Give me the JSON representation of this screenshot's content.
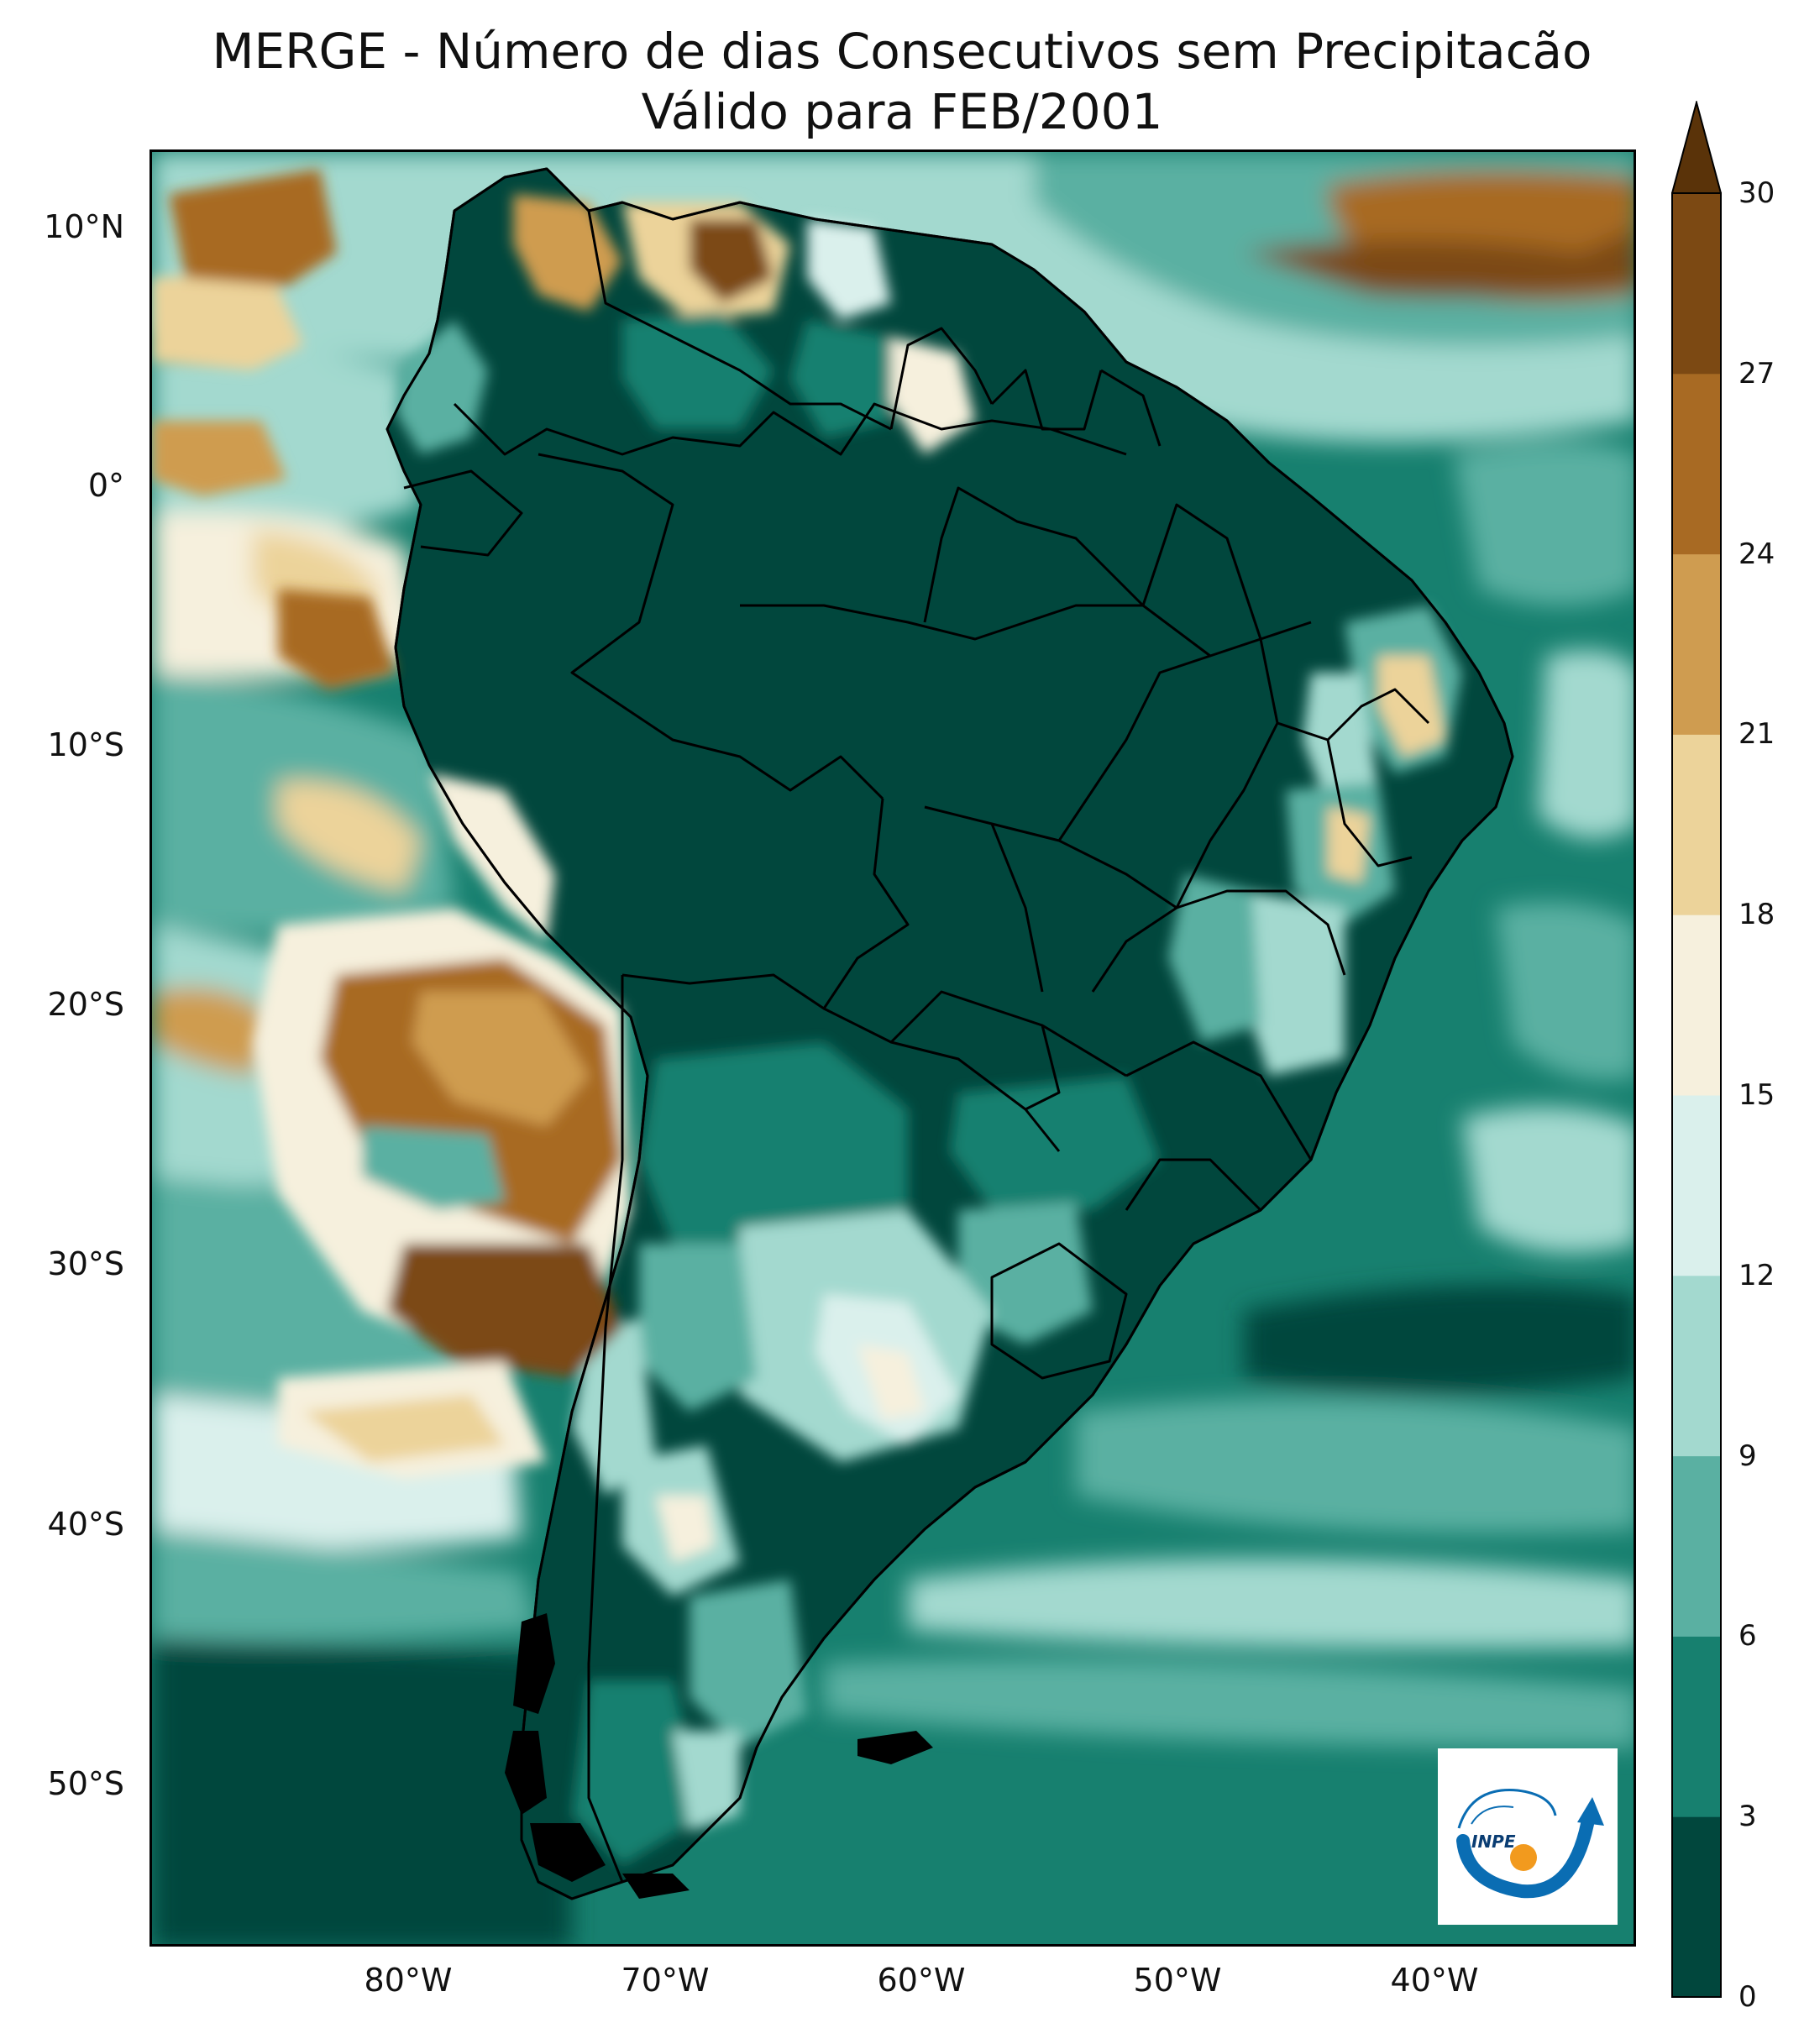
{
  "title": {
    "line1": "MERGE - Número de dias Consecutivos sem Precipitacão",
    "line2": "Válido para FEB/2001"
  },
  "axes": {
    "lat_labels": [
      {
        "text": "10°N",
        "value": 10
      },
      {
        "text": "0°",
        "value": 0
      },
      {
        "text": "10°S",
        "value": -10
      },
      {
        "text": "20°S",
        "value": -20
      },
      {
        "text": "30°S",
        "value": -30
      },
      {
        "text": "40°S",
        "value": -40
      },
      {
        "text": "50°S",
        "value": -50
      }
    ],
    "lon_labels": [
      {
        "text": "80°W",
        "value": -80
      },
      {
        "text": "70°W",
        "value": -70
      },
      {
        "text": "60°W",
        "value": -60
      },
      {
        "text": "50°W",
        "value": -50
      },
      {
        "text": "40°W",
        "value": -40
      }
    ],
    "lat_range": [
      -57,
      13
    ],
    "lon_range": [
      -90,
      -32
    ]
  },
  "colorbar": {
    "ticks": [
      "0",
      "3",
      "6",
      "9",
      "12",
      "15",
      "18",
      "21",
      "24",
      "27",
      "30"
    ],
    "colors": [
      "#01473d",
      "#17806f",
      "#5ab0a2",
      "#a3d9cf",
      "#daf0ec",
      "#f6f0dd",
      "#ecd39a",
      "#cf9c50",
      "#a86a23",
      "#7c4913"
    ],
    "extend_color": "#5a3309",
    "extend": "max"
  },
  "logo": {
    "text": "INPE"
  }
}
